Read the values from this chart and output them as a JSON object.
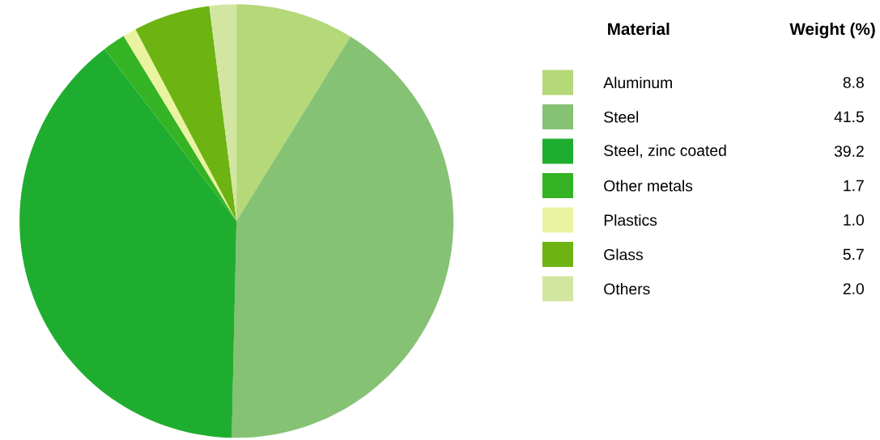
{
  "chart_data": {
    "type": "pie",
    "legend_title": "Material",
    "annotations": [
      "Weight (%)"
    ],
    "categories": [
      "Aluminum",
      "Steel",
      "Steel, zinc coated",
      "Other metals",
      "Plastics",
      "Glass",
      "Others"
    ],
    "values": [
      8.8,
      41.5,
      39.2,
      1.7,
      1.0,
      5.7,
      2.0
    ],
    "colors": [
      "#b5d878",
      "#86c274",
      "#1fad2f",
      "#34b424",
      "#eaf3a0",
      "#6db312",
      "#d2e6a1"
    ],
    "value_labels": [
      "8.8",
      "41.5",
      "39.2",
      "1.7",
      "1.0",
      "5.7",
      "2.0"
    ],
    "legend": "right"
  }
}
